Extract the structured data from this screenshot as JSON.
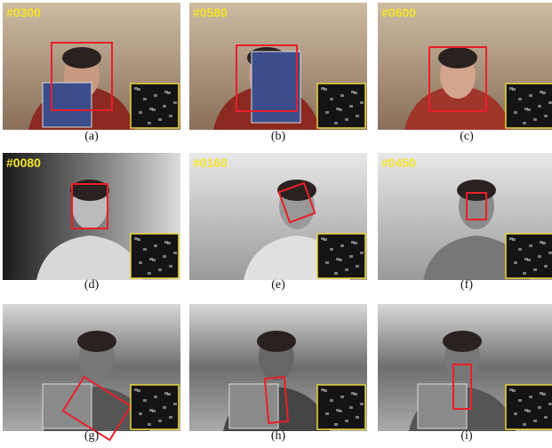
{
  "panels": [
    {
      "frame": "#0300",
      "caption": "(a)"
    },
    {
      "frame": "#0580",
      "caption": "(b)"
    },
    {
      "frame": "#0600",
      "caption": "(c)"
    },
    {
      "frame": "#0080",
      "caption": "(d)"
    },
    {
      "frame": "#0160",
      "caption": "(e)"
    },
    {
      "frame": "#0450",
      "caption": "(f)"
    },
    {
      "caption": "(g)"
    },
    {
      "caption": "(h)"
    },
    {
      "caption": "(i)"
    }
  ]
}
